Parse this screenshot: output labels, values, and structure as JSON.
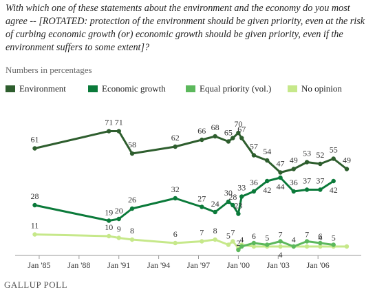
{
  "question": "With which one of these statements about the environment and the economy do you most agree -- [ROTATED: protection of the environment should be given priority, even at the risk of curbing economic growth (or) economic growth should be given priority, even if the environment suffers to some extent]?",
  "subtitle": "Numbers in percentages",
  "source": "GALLUP POLL",
  "legend": [
    {
      "label": "Environment",
      "color": "#2e5e2e"
    },
    {
      "label": "Economic growth",
      "color": "#0b7a3a"
    },
    {
      "label": "Equal priority (vol.)",
      "color": "#5cb85c"
    },
    {
      "label": "No opinion",
      "color": "#c6e88a"
    }
  ],
  "chart_data": {
    "type": "line",
    "title": "",
    "xlabel": "",
    "ylabel": "",
    "x_ticks": [
      "Jan '85",
      "Jan '88",
      "Jan '91",
      "Jan '94",
      "Jan '97",
      "Jan '00",
      "Jan '03",
      "Jan '06"
    ],
    "x": [
      "1984-09",
      "1990-04",
      "1991-01",
      "1992-01",
      "1995-04",
      "1997-04",
      "1998-04",
      "1999-04",
      "1999-08",
      "2000-01",
      "2000-04",
      "2001-03",
      "2002-03",
      "2003-03",
      "2004-03",
      "2005-03",
      "2006-03",
      "2007-03",
      "2008-03"
    ],
    "ylim": [
      0,
      80
    ],
    "grid": false,
    "legend_position": "top",
    "series": [
      {
        "name": "Environment",
        "color": "#2e5e2e",
        "values": [
          61,
          71,
          71,
          58,
          62,
          66,
          68,
          65,
          67,
          70,
          67,
          57,
          54,
          47,
          49,
          53,
          52,
          55,
          49
        ]
      },
      {
        "name": "Economic growth",
        "color": "#0b7a3a",
        "values": [
          28,
          19,
          20,
          26,
          32,
          27,
          24,
          30,
          28,
          23,
          33,
          36,
          42,
          44,
          36,
          37,
          37,
          42,
          null
        ]
      },
      {
        "name": "Equal priority (vol.)",
        "color": "#5cb85c",
        "values": [
          null,
          null,
          null,
          null,
          null,
          null,
          null,
          null,
          null,
          2,
          4,
          6,
          5,
          7,
          4,
          7,
          6,
          5,
          null
        ]
      },
      {
        "name": "No opinion",
        "color": "#c6e88a",
        "values": [
          11,
          10,
          9,
          8,
          6,
          7,
          8,
          5,
          7,
          3,
          5,
          4,
          4,
          4,
          4,
          4,
          4,
          4,
          4
        ]
      }
    ],
    "data_labels": [
      {
        "series": 0,
        "point": 0,
        "text": "61"
      },
      {
        "series": 0,
        "point": 1,
        "text": "71"
      },
      {
        "series": 0,
        "point": 2,
        "text": "71"
      },
      {
        "series": 0,
        "point": 3,
        "text": "58"
      },
      {
        "series": 0,
        "point": 4,
        "text": "62"
      },
      {
        "series": 0,
        "point": 5,
        "text": "66"
      },
      {
        "series": 0,
        "point": 6,
        "text": "68"
      },
      {
        "series": 0,
        "point": 7,
        "text": "65"
      },
      {
        "series": 0,
        "point": 9,
        "text": "70"
      },
      {
        "series": 0,
        "point": 10,
        "text": "67"
      },
      {
        "series": 0,
        "point": 11,
        "text": "57"
      },
      {
        "series": 0,
        "point": 12,
        "text": "54"
      },
      {
        "series": 0,
        "point": 13,
        "text": "47"
      },
      {
        "series": 0,
        "point": 14,
        "text": "49"
      },
      {
        "series": 0,
        "point": 15,
        "text": "53"
      },
      {
        "series": 0,
        "point": 16,
        "text": "52"
      },
      {
        "series": 0,
        "point": 17,
        "text": "55"
      },
      {
        "series": 0,
        "point": 18,
        "text": "49"
      },
      {
        "series": 1,
        "point": 0,
        "text": "28"
      },
      {
        "series": 1,
        "point": 1,
        "text": "19"
      },
      {
        "series": 1,
        "point": 2,
        "text": "20"
      },
      {
        "series": 1,
        "point": 3,
        "text": "26"
      },
      {
        "series": 1,
        "point": 4,
        "text": "32"
      },
      {
        "series": 1,
        "point": 5,
        "text": "27"
      },
      {
        "series": 1,
        "point": 6,
        "text": "24"
      },
      {
        "series": 1,
        "point": 7,
        "text": "30"
      },
      {
        "series": 1,
        "point": 8,
        "text": "28"
      },
      {
        "series": 1,
        "point": 9,
        "text": "23"
      },
      {
        "series": 1,
        "point": 10,
        "text": "33"
      },
      {
        "series": 1,
        "point": 11,
        "text": "36"
      },
      {
        "series": 1,
        "point": 12,
        "text": "42"
      },
      {
        "series": 1,
        "point": 13,
        "text": "44"
      },
      {
        "series": 1,
        "point": 14,
        "text": "36"
      },
      {
        "series": 1,
        "point": 15,
        "text": "37"
      },
      {
        "series": 1,
        "point": 16,
        "text": "37"
      },
      {
        "series": 1,
        "point": 17,
        "text": "42"
      },
      {
        "series": 2,
        "point": 9,
        "text": "2"
      },
      {
        "series": 2,
        "point": 10,
        "text": "4"
      },
      {
        "series": 2,
        "point": 11,
        "text": "6"
      },
      {
        "series": 2,
        "point": 12,
        "text": "5"
      },
      {
        "series": 2,
        "point": 13,
        "text": "7"
      },
      {
        "series": 2,
        "point": 14,
        "text": "4"
      },
      {
        "series": 2,
        "point": 15,
        "text": "7"
      },
      {
        "series": 2,
        "point": 16,
        "text": "6"
      },
      {
        "series": 2,
        "point": 17,
        "text": "5"
      },
      {
        "series": 3,
        "point": 0,
        "text": "11"
      },
      {
        "series": 3,
        "point": 1,
        "text": "10"
      },
      {
        "series": 3,
        "point": 2,
        "text": "9"
      },
      {
        "series": 3,
        "point": 3,
        "text": "8"
      },
      {
        "series": 3,
        "point": 4,
        "text": "6"
      },
      {
        "series": 3,
        "point": 5,
        "text": "7"
      },
      {
        "series": 3,
        "point": 6,
        "text": "8"
      },
      {
        "series": 3,
        "point": 7,
        "text": "5"
      },
      {
        "series": 3,
        "point": 8,
        "text": "7"
      },
      {
        "series": 3,
        "point": 13,
        "text": "4"
      },
      {
        "series": 3,
        "point": 16,
        "text": "4"
      }
    ]
  }
}
